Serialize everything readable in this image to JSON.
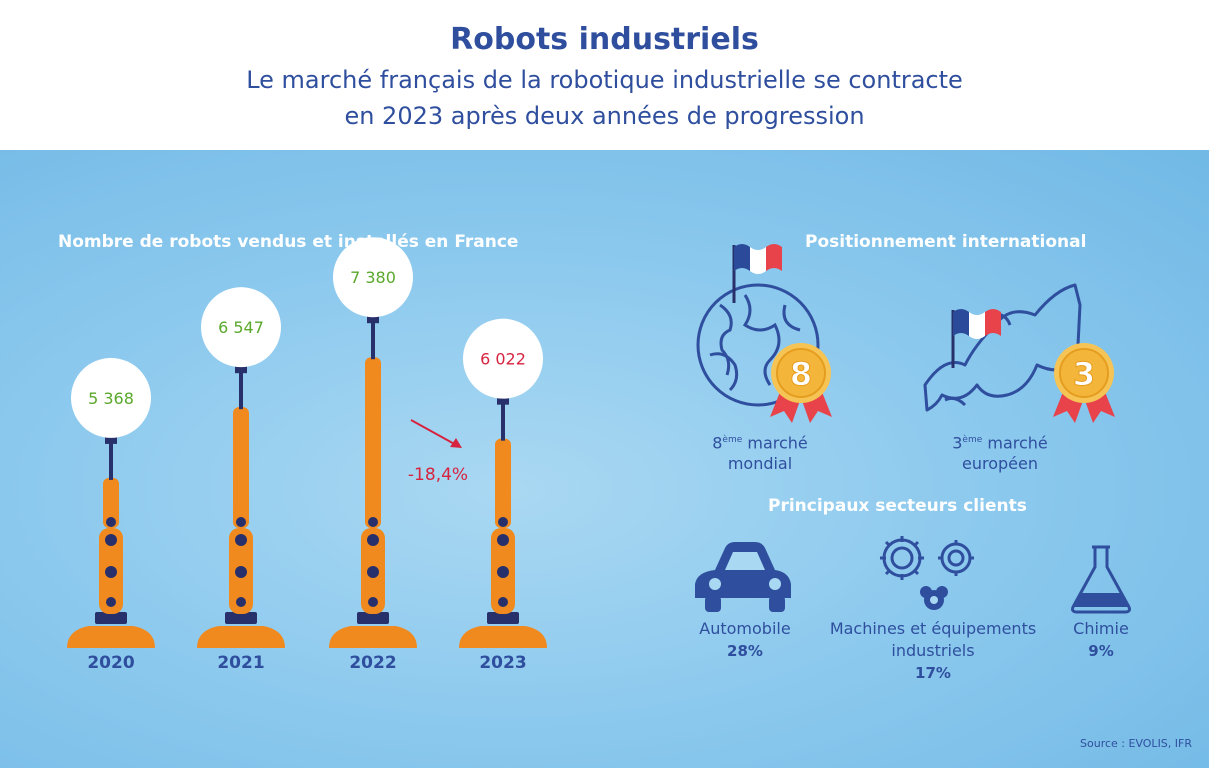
{
  "header": {
    "title": "Robots industriels",
    "subtitle_line1": "Le marché français de la robotique industrielle se contracte",
    "subtitle_line2": "en 2023 après deux années de progression"
  },
  "chart_data": {
    "type": "bar",
    "title": "Nombre de robots vendus et installés en France",
    "categories": [
      "2020",
      "2021",
      "2022",
      "2023"
    ],
    "values": [
      5368,
      6547,
      7380,
      6022
    ],
    "value_labels": [
      "5 368",
      "6 547",
      "7 380",
      "6 022"
    ],
    "value_colors": [
      "#5aa82c",
      "#5aa82c",
      "#5aa82c",
      "#d6233f"
    ],
    "change_label": "-18,4%",
    "change_color": "#d6233f",
    "ylim": [
      4000,
      8000
    ]
  },
  "positioning": {
    "heading": "Positionnement international",
    "world": {
      "rank": "8",
      "sup": "ème",
      "line1": " marché",
      "line2": "mondial"
    },
    "europe": {
      "rank": "3",
      "sup": "ème",
      "line1": " marché",
      "line2": "européen"
    }
  },
  "sectors": {
    "heading": "Principaux secteurs clients",
    "items": [
      {
        "label_line1": "Automobile",
        "label_line2": "",
        "pct": "28%",
        "icon": "car-icon"
      },
      {
        "label_line1": "Machines et équipements",
        "label_line2": "industriels",
        "pct": "17%",
        "icon": "gears-icon"
      },
      {
        "label_line1": "Chimie",
        "label_line2": "",
        "pct": "9%",
        "icon": "flask-icon"
      }
    ]
  },
  "source": "Source : EVOLIS, IFR",
  "colors": {
    "dark_blue": "#2f4f9e",
    "robot_orange": "#f08a1e",
    "robot_dark": "#27306b",
    "gold": "#f4b63a",
    "ribbon": "#e8424a"
  }
}
